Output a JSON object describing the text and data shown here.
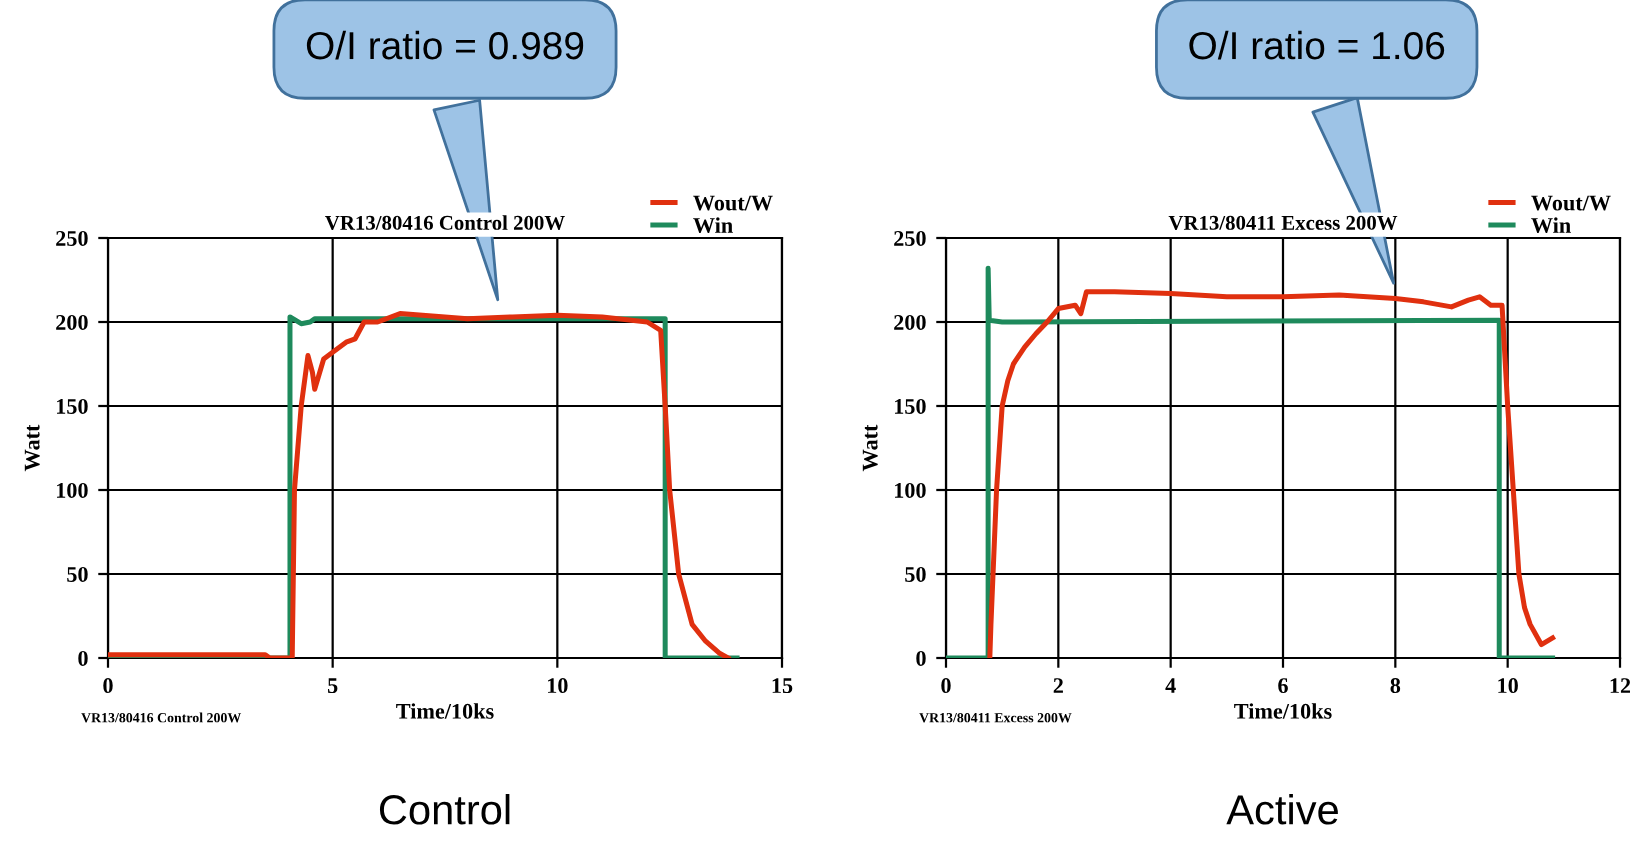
{
  "chart_data": [
    {
      "type": "line",
      "title": "VR13/80416 Control 200W",
      "subtitle": "Control",
      "xlabel": "Time/10ks",
      "ylabel": "Watt",
      "xlim": [
        0,
        15
      ],
      "ylim": [
        0,
        250
      ],
      "xticks": [
        0,
        5,
        10,
        15
      ],
      "yticks": [
        0,
        50,
        100,
        150,
        200,
        250
      ],
      "grid": true,
      "legend": "top right",
      "marker": "none",
      "line_style": "solid",
      "annotations": [
        {
          "text": "O/I ratio = 0.989",
          "x": 8.7,
          "y": 210
        },
        "VR13/80416 Control 200W"
      ],
      "series": [
        {
          "name": "Wout/W",
          "color": "#e0300f",
          "x": [
            0,
            1,
            2,
            3,
            3.5,
            3.6,
            4.1,
            4.15,
            4.3,
            4.45,
            4.55,
            4.6,
            4.8,
            5,
            5.3,
            5.5,
            5.7,
            6,
            6.5,
            7,
            8,
            9,
            10,
            11,
            12,
            12.3,
            12.4,
            12.5,
            12.7,
            13,
            13.3,
            13.6,
            13.8
          ],
          "values": [
            2,
            2,
            2,
            2,
            2,
            0,
            0,
            100,
            150,
            180,
            170,
            160,
            178,
            182,
            188,
            190,
            200,
            200,
            205,
            204,
            202,
            203,
            204,
            203,
            200,
            195,
            150,
            100,
            50,
            20,
            10,
            3,
            0
          ]
        },
        {
          "name": "Win",
          "color": "#1e8a5c",
          "x": [
            0,
            4.05,
            4.05,
            4.3,
            4.5,
            4.6,
            12.4,
            12.4,
            14
          ],
          "values": [
            0,
            0,
            203,
            199,
            200,
            202,
            202,
            0,
            0
          ]
        }
      ]
    },
    {
      "type": "line",
      "title": "VR13/80411 Excess 200W",
      "subtitle": "Active",
      "xlabel": "Time/10ks",
      "ylabel": "Watt",
      "xlim": [
        0,
        12
      ],
      "ylim": [
        0,
        250
      ],
      "xticks": [
        0,
        2,
        4,
        6,
        8,
        10,
        12
      ],
      "yticks": [
        0,
        50,
        100,
        150,
        200,
        250
      ],
      "grid": true,
      "legend": "top right",
      "marker": "none",
      "line_style": "solid",
      "annotations": [
        {
          "text": "O/I ratio = 1.06",
          "x": 8,
          "y": 220
        },
        "VR13/80411 Excess 200W"
      ],
      "series": [
        {
          "name": "Wout/W",
          "color": "#e0300f",
          "x": [
            0.78,
            0.8,
            0.85,
            0.9,
            1.0,
            1.1,
            1.2,
            1.4,
            1.6,
            1.8,
            2.0,
            2.3,
            2.4,
            2.5,
            3,
            4,
            5,
            6,
            7,
            8,
            8.5,
            9,
            9.3,
            9.5,
            9.7,
            9.9,
            10.0,
            10.1,
            10.2,
            10.3,
            10.4,
            10.6,
            10.8
          ],
          "values": [
            0,
            20,
            60,
            100,
            150,
            165,
            175,
            185,
            193,
            200,
            208,
            210,
            205,
            218,
            218,
            217,
            215,
            215,
            216,
            214,
            212,
            209,
            213,
            215,
            210,
            210,
            150,
            100,
            50,
            30,
            20,
            8,
            12
          ]
        },
        {
          "name": "Win",
          "color": "#1e8a5c",
          "x": [
            0,
            0.75,
            0.75,
            0.77,
            1.0,
            9.85,
            9.85,
            10.8
          ],
          "values": [
            0,
            0,
            232,
            201,
            200,
            201,
            0,
            0
          ]
        }
      ]
    }
  ]
}
